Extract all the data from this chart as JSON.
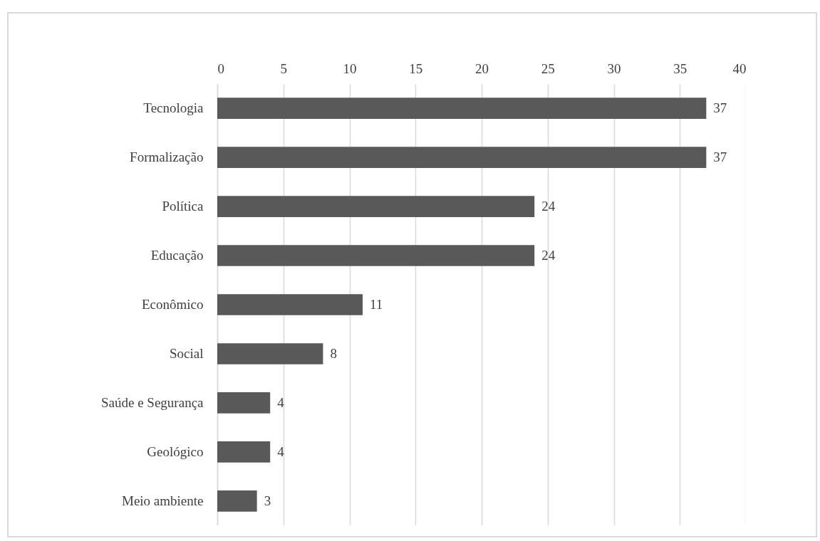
{
  "chart_data": {
    "type": "bar",
    "orientation": "horizontal",
    "categories": [
      "Tecnologia",
      "Formalização",
      "Política",
      "Educação",
      "Econômico",
      "Social",
      "Saúde e Segurança",
      "Geológico",
      "Meio ambiente"
    ],
    "values": [
      37,
      37,
      24,
      24,
      11,
      8,
      4,
      4,
      3
    ],
    "color": "#595959",
    "xlim": [
      0,
      40
    ],
    "xticks": [
      0,
      5,
      10,
      15,
      20,
      25,
      30,
      35,
      40
    ],
    "grid": "x",
    "data_labels": true
  }
}
